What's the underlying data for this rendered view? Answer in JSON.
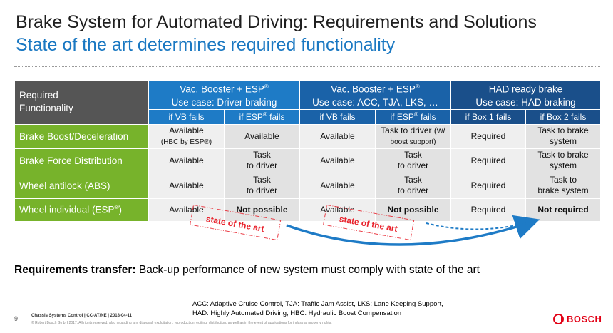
{
  "title": "Brake System for Automated Driving: Requirements and Solutions",
  "subtitle": "State of the art determines required functionality",
  "table": {
    "corner": [
      "Required",
      "Functionality"
    ],
    "groups": [
      {
        "line1": "Vac. Booster + ESP",
        "sup": "®",
        "line2": "Use case: Driver braking"
      },
      {
        "line1": "Vac. Booster + ESP",
        "sup": "®",
        "line2": "Use case: ACC, TJA, LKS, …"
      },
      {
        "line1": "HAD ready brake",
        "sup": "",
        "line2": "Use case: HAD braking"
      }
    ],
    "subheaders": [
      {
        "pre": "if VB fails",
        "sup": "",
        "post": ""
      },
      {
        "pre": "if ESP",
        "sup": "®",
        "post": " fails"
      },
      {
        "pre": "if VB fails",
        "sup": "",
        "post": ""
      },
      {
        "pre": "if ESP",
        "sup": "®",
        "post": " fails"
      },
      {
        "pre": "if Box 1 fails",
        "sup": "",
        "post": ""
      },
      {
        "pre": "if Box 2 fails",
        "sup": "",
        "post": ""
      }
    ],
    "rows": [
      {
        "label": "Brake Boost/Deceleration",
        "label_sup": "",
        "cells": [
          {
            "l1": "Available",
            "l2": "(HBC by ESP®)",
            "small2": true
          },
          {
            "l1": "Available",
            "l2": ""
          },
          {
            "l1": "Available",
            "l2": ""
          },
          {
            "l1": "Task to driver (w/",
            "l2": "boost support)",
            "small2": true
          },
          {
            "l1": "Required",
            "l2": ""
          },
          {
            "l1": "Task to brake",
            "l2": "system"
          }
        ]
      },
      {
        "label": "Brake Force Distribution",
        "label_sup": "",
        "cells": [
          {
            "l1": "Available",
            "l2": ""
          },
          {
            "l1": "Task",
            "l2": "to driver"
          },
          {
            "l1": "Available",
            "l2": ""
          },
          {
            "l1": "Task",
            "l2": "to driver"
          },
          {
            "l1": "Required",
            "l2": ""
          },
          {
            "l1": "Task to brake",
            "l2": "system"
          }
        ]
      },
      {
        "label": "Wheel antilock (ABS)",
        "label_sup": "",
        "cells": [
          {
            "l1": "Available",
            "l2": ""
          },
          {
            "l1": "Task",
            "l2": "to driver"
          },
          {
            "l1": "Available",
            "l2": ""
          },
          {
            "l1": "Task",
            "l2": "to driver"
          },
          {
            "l1": "Required",
            "l2": ""
          },
          {
            "l1": "Task to",
            "l2": "brake system"
          }
        ]
      },
      {
        "label": "Wheel individual (ESP",
        "label_sup": "®",
        "label_post": ")",
        "cells": [
          {
            "l1": "Available",
            "l2": ""
          },
          {
            "l1": "Not possible",
            "l2": "",
            "bold": true
          },
          {
            "l1": "Available",
            "l2": ""
          },
          {
            "l1": "Not possible",
            "l2": "",
            "bold": true
          },
          {
            "l1": "Required",
            "l2": ""
          },
          {
            "l1": "Not required",
            "l2": "",
            "bold": true
          }
        ]
      }
    ]
  },
  "stamps": [
    "state of the art",
    "state of the art"
  ],
  "requirements": {
    "label": "Requirements transfer:",
    "text": " Back-up performance of new system must comply with state of the art"
  },
  "abbreviations": [
    "ACC: Adaptive Cruise Control, TJA: Traffic Jam Assist, LKS: Lane Keeping Support,",
    "HAD: Highly Automated Driving, HBC: Hydraulic Boost Compensation"
  ],
  "page_number": "9",
  "footer_line1": "Chassis Systems Control | CC-AT/NE | 2018-04-11",
  "footer_line2": "© Robert Bosch GmbH 2017. All rights reserved, also regarding any disposal, exploitation, reproduction, editing, distribution, as well as in the event of applications for industrial property rights.",
  "brand": "BOSCH",
  "colors": {
    "accent_blue": "#1a78c2",
    "row_green": "#77b32b",
    "stamp_red": "#e8202a",
    "arrow_blue": "#1e7bc6"
  }
}
